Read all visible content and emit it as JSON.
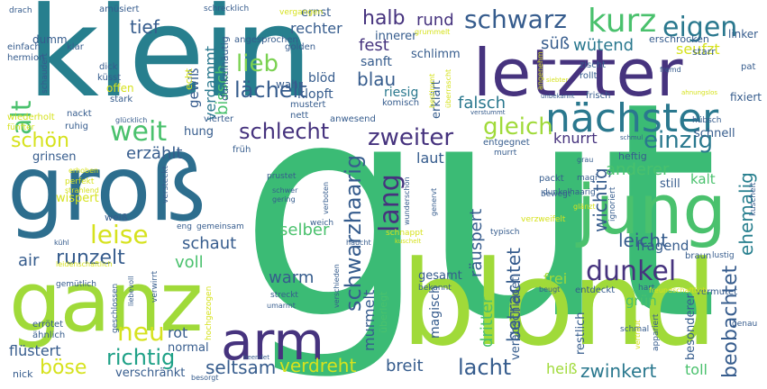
{
  "palette": {
    "dark_purple": "#46337e",
    "blue": "#365c8d",
    "teal_blue": "#277f8e",
    "teal": "#1fa187",
    "green": "#4ac16d",
    "light_green": "#a0da39",
    "yellow": "#d6e21e",
    "pale_yellow": "#e8e419"
  },
  "words": [
    {
      "text": "gut"
    },
    {
      "text": "klein"
    },
    {
      "text": "blond"
    },
    {
      "text": "groß"
    },
    {
      "text": "letzter"
    },
    {
      "text": "ganz"
    },
    {
      "text": "jung"
    },
    {
      "text": "arm"
    },
    {
      "text": "nächster"
    },
    {
      "text": "kurz"
    },
    {
      "text": "eigen"
    },
    {
      "text": "schwarz"
    },
    {
      "text": "neu"
    },
    {
      "text": "dunkel"
    },
    {
      "text": "alt"
    },
    {
      "text": "lieb"
    },
    {
      "text": "weit"
    },
    {
      "text": "schön"
    },
    {
      "text": "lächelt"
    },
    {
      "text": "schlecht"
    },
    {
      "text": "zweiter"
    },
    {
      "text": "einzig"
    },
    {
      "text": "gleich"
    },
    {
      "text": "leise"
    },
    {
      "text": "lang"
    },
    {
      "text": "schwarzhaarig"
    },
    {
      "text": "richtig"
    },
    {
      "text": "lacht"
    },
    {
      "text": "zwinkert"
    },
    {
      "text": "verdreht"
    },
    {
      "text": "seltsam"
    },
    {
      "text": "böse"
    },
    {
      "text": "schaut"
    },
    {
      "text": "runzelt"
    },
    {
      "text": "beobachtet"
    },
    {
      "text": "ehemalig"
    },
    {
      "text": "leicht"
    },
    {
      "text": "betrachtet"
    },
    {
      "text": "wichtig"
    },
    {
      "text": "anderer"
    },
    {
      "text": "halb"
    },
    {
      "text": "rund"
    },
    {
      "text": "tief"
    },
    {
      "text": "fest"
    },
    {
      "text": "blau"
    },
    {
      "text": "falsch"
    },
    {
      "text": "knurrt"
    },
    {
      "text": "erzählt"
    },
    {
      "text": "wütend"
    },
    {
      "text": "seufzt"
    },
    {
      "text": "rechter"
    },
    {
      "text": "süß"
    },
    {
      "text": "verdammt"
    },
    {
      "text": "gewiß"
    },
    {
      "text": "bissch"
    },
    {
      "text": "voll"
    },
    {
      "text": "air"
    },
    {
      "text": "warm"
    },
    {
      "text": "selber"
    },
    {
      "text": "murmelt"
    },
    {
      "text": "räuspert"
    },
    {
      "text": "dritter"
    },
    {
      "text": "frei"
    },
    {
      "text": "fragend"
    },
    {
      "text": "grün"
    },
    {
      "text": "kalt"
    },
    {
      "text": "rot"
    },
    {
      "text": "breit"
    },
    {
      "text": "heiß"
    },
    {
      "text": "toll"
    },
    {
      "text": "verschränkt"
    },
    {
      "text": "flüstert"
    },
    {
      "text": "normal"
    },
    {
      "text": "laut"
    },
    {
      "text": "magisch"
    },
    {
      "text": "verabschiedet"
    },
    {
      "text": "restlich"
    },
    {
      "text": "besonderer"
    },
    {
      "text": "erklärt"
    },
    {
      "text": "riesig"
    },
    {
      "text": "sanft"
    },
    {
      "text": "blöd"
    },
    {
      "text": "klopft"
    },
    {
      "text": "wahr"
    },
    {
      "text": "schlimm"
    },
    {
      "text": "innerer"
    },
    {
      "text": "ernst"
    },
    {
      "text": "echt"
    },
    {
      "text": "dunkelhäutig"
    },
    {
      "text": "offen"
    },
    {
      "text": "dumm"
    },
    {
      "text": "grinsen"
    },
    {
      "text": "hung"
    },
    {
      "text": "schnell"
    },
    {
      "text": "still"
    },
    {
      "text": "gesamt"
    },
    {
      "text": "heftig"
    },
    {
      "text": "erschrocken"
    },
    {
      "text": "linker"
    },
    {
      "text": "starr"
    },
    {
      "text": "fixiert"
    },
    {
      "text": "amüsiert"
    },
    {
      "text": "schrecklich"
    },
    {
      "text": "vergangen"
    },
    {
      "text": "angesprochen"
    },
    {
      "text": "golden"
    },
    {
      "text": "grummelt"
    },
    {
      "text": "einfach"
    },
    {
      "text": "hermion"
    },
    {
      "text": "klar"
    },
    {
      "text": "dick"
    },
    {
      "text": "küsst"
    },
    {
      "text": "stark"
    },
    {
      "text": "nackt"
    },
    {
      "text": "ruhig"
    },
    {
      "text": "wiederholt"
    },
    {
      "text": "fünfter"
    },
    {
      "text": "glücklich"
    },
    {
      "text": "vierter"
    },
    {
      "text": "mustert"
    },
    {
      "text": "nett"
    },
    {
      "text": "komisch"
    },
    {
      "text": "anwesend"
    },
    {
      "text": "entgegnet"
    },
    {
      "text": "murrt"
    },
    {
      "text": "früh"
    },
    {
      "text": "packt"
    },
    {
      "text": "magi"
    },
    {
      "text": "ignoriert"
    },
    {
      "text": "kuschelt"
    },
    {
      "text": "zischt"
    },
    {
      "text": "rollt"
    },
    {
      "text": "frisch"
    },
    {
      "text": "unbekannt"
    },
    {
      "text": "fremd"
    },
    {
      "text": "pat"
    },
    {
      "text": "hübsch"
    },
    {
      "text": "schmul"
    },
    {
      "text": "verstummt"
    },
    {
      "text": "bestimmt"
    },
    {
      "text": "überrascht"
    },
    {
      "text": "angenehm"
    },
    {
      "text": "schaudert"
    },
    {
      "text": "weiß"
    },
    {
      "text": "wispert"
    },
    {
      "text": "perfekt"
    },
    {
      "text": "strahlend"
    },
    {
      "text": "erhoben"
    },
    {
      "text": "versteckt"
    },
    {
      "text": "eng"
    },
    {
      "text": "gemeinsam"
    },
    {
      "text": "schwer"
    },
    {
      "text": "gering"
    },
    {
      "text": "prustet"
    },
    {
      "text": "verboten"
    },
    {
      "text": "verschieden"
    },
    {
      "text": "wunderschön"
    },
    {
      "text": "genervt"
    },
    {
      "text": "verzweifelt"
    },
    {
      "text": "dunkelhaarig"
    },
    {
      "text": "bewegt"
    },
    {
      "text": "typisch"
    },
    {
      "text": "schnappt"
    },
    {
      "text": "kuschelt"
    },
    {
      "text": "gemütlich"
    },
    {
      "text": "geschlossen"
    },
    {
      "text": "liebevoll"
    },
    {
      "text": "verwirrt"
    },
    {
      "text": "hochgezogen"
    },
    {
      "text": "streckt"
    },
    {
      "text": "umarmt"
    },
    {
      "text": "überlegt"
    },
    {
      "text": "bekannt"
    },
    {
      "text": "entdeckt"
    },
    {
      "text": "vermutet"
    },
    {
      "text": "beugt"
    },
    {
      "text": "schmal"
    },
    {
      "text": "vertraut"
    },
    {
      "text": "appariert"
    },
    {
      "text": "errötet"
    },
    {
      "text": "ähnlich"
    },
    {
      "text": "nick"
    },
    {
      "text": "besorgt"
    },
    {
      "text": "beendet"
    },
    {
      "text": "kühl"
    },
    {
      "text": "haucht"
    },
    {
      "text": "weich"
    },
    {
      "text": "braun"
    },
    {
      "text": "lustig"
    },
    {
      "text": "genau"
    },
    {
      "text": "hart"
    },
    {
      "text": "freundschaftlich"
    },
    {
      "text": "drach"
    },
    {
      "text": "siebter"
    },
    {
      "text": "ahnungslos"
    },
    {
      "text": "leidenschaftlich"
    },
    {
      "text": "grau"
    },
    {
      "text": "glänzt"
    }
  ]
}
